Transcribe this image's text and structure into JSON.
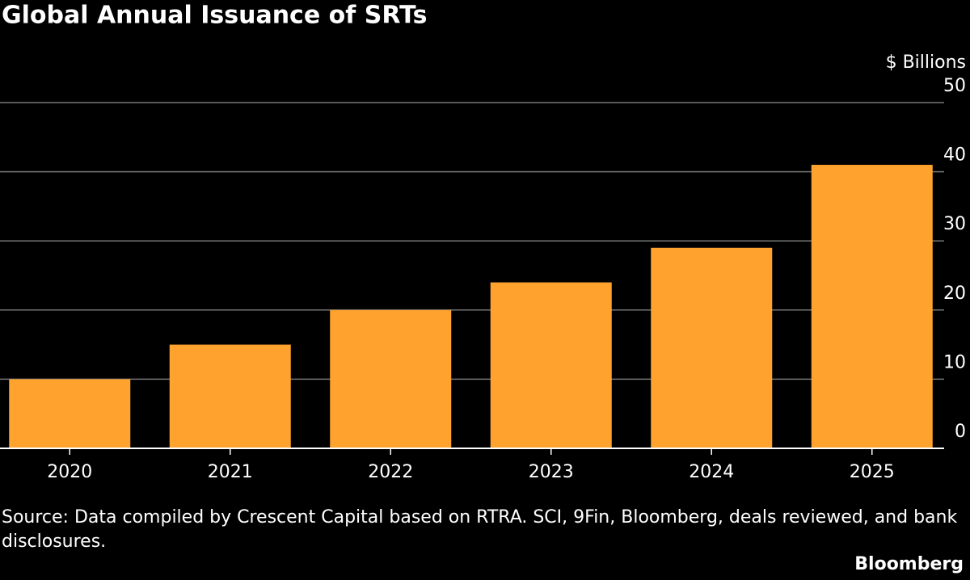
{
  "chart_data": {
    "type": "bar",
    "title": "Global Annual Issuance of SRTs",
    "y_label": "$ Billions",
    "categories": [
      "2020",
      "2021",
      "2022",
      "2023",
      "2024",
      "2025"
    ],
    "values": [
      10,
      15,
      20,
      24,
      29,
      41
    ],
    "color": "#ffa22e",
    "ylim": [
      0,
      50
    ],
    "yticks": [
      0,
      10,
      20,
      30,
      40,
      50
    ],
    "grid": true,
    "source": "Source: Data compiled by Crescent Capital based on RTRA. SCI, 9Fin, Bloomberg, deals reviewed, and bank disclosures.",
    "brand": "Bloomberg"
  }
}
